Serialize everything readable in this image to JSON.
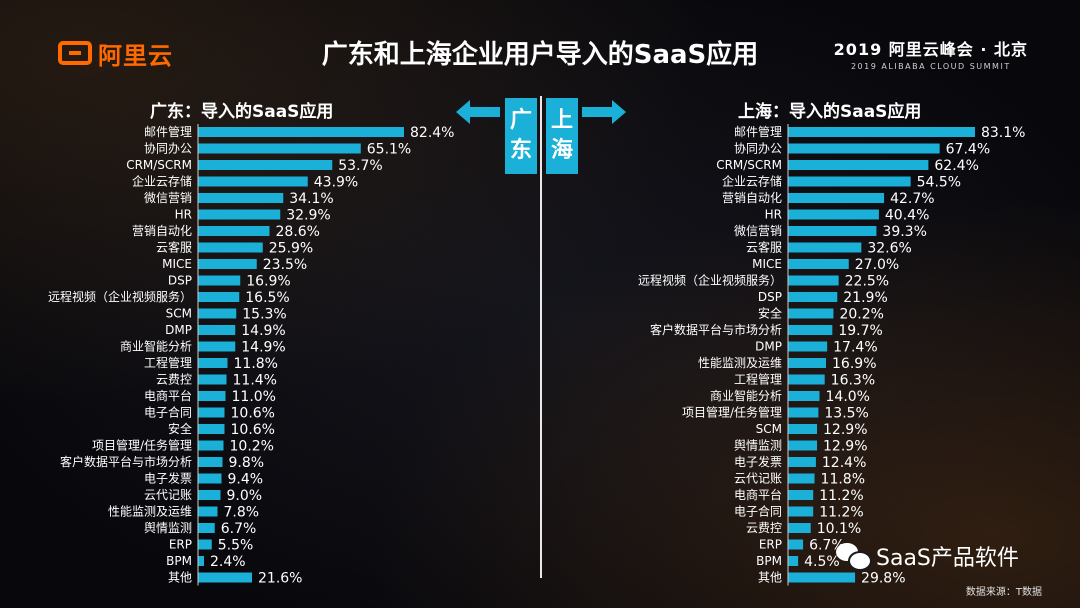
{
  "header": {
    "logo_text": "阿里云",
    "title": "广东和上海企业用户导入的SaaS应用",
    "summit_main": "2019 阿里云峰会 · 北京",
    "summit_sub": "2019 ALIBABA CLOUD SUMMIT"
  },
  "center": {
    "left_city": "广东",
    "right_city": "上海"
  },
  "footer": {
    "source": "数据来源：T数据",
    "watermark": "SaaS产品软件"
  },
  "colors": {
    "bar": "#1ab0d8",
    "text": "#ffffff",
    "logo": "#ff6a00"
  },
  "chart_data": [
    {
      "type": "bar",
      "orientation": "horizontal",
      "title": "广东：导入的SaaS应用",
      "unit": "%",
      "categories": [
        "邮件管理",
        "协同办公",
        "CRM/SCRM",
        "企业云存储",
        "微信营销",
        "HR",
        "营销自动化",
        "云客服",
        "MICE",
        "DSP",
        "远程视频（企业视频服务）",
        "SCM",
        "DMP",
        "商业智能分析",
        "工程管理",
        "云费控",
        "电商平台",
        "电子合同",
        "安全",
        "项目管理/任务管理",
        "客户数据平台与市场分析",
        "电子发票",
        "云代记账",
        "性能监测及运维",
        "舆情监测",
        "ERP",
        "BPM",
        "其他"
      ],
      "values": [
        82.4,
        65.1,
        53.7,
        43.9,
        34.1,
        32.9,
        28.6,
        25.9,
        23.5,
        16.9,
        16.5,
        15.3,
        14.9,
        14.9,
        11.8,
        11.4,
        11.0,
        10.6,
        10.6,
        10.2,
        9.8,
        9.4,
        9.0,
        7.8,
        6.7,
        5.5,
        2.4,
        21.6
      ],
      "labels": [
        "82.4%",
        "65.1%",
        "53.7%",
        "43.9%",
        "34.1%",
        "32.9%",
        "28.6%",
        "25.9%",
        "23.5%",
        "16.9%",
        "16.5%",
        "15.3%",
        "14.9%",
        "14.9%",
        "11.8%",
        "11.4%",
        "11.0%",
        "10.6%",
        "10.6%",
        "10.2%",
        "9.8%",
        "9.4%",
        "9.0%",
        "7.8%",
        "6.7%",
        "5.5%",
        "2.4%",
        "21.6%"
      ],
      "xlim": [
        0,
        100
      ],
      "grid": false
    },
    {
      "type": "bar",
      "orientation": "horizontal",
      "title": "上海：导入的SaaS应用",
      "unit": "%",
      "categories": [
        "邮件管理",
        "协同办公",
        "CRM/SCRM",
        "企业云存储",
        "营销自动化",
        "HR",
        "微信营销",
        "云客服",
        "MICE",
        "远程视频（企业视频服务）",
        "DSP",
        "安全",
        "客户数据平台与市场分析",
        "DMP",
        "性能监测及运维",
        "工程管理",
        "商业智能分析",
        "项目管理/任务管理",
        "SCM",
        "舆情监测",
        "电子发票",
        "云代记账",
        "电商平台",
        "电子合同",
        "云费控",
        "ERP",
        "BPM",
        "其他"
      ],
      "values": [
        83.1,
        67.4,
        62.4,
        54.5,
        42.7,
        40.4,
        39.3,
        32.6,
        27.0,
        22.5,
        21.9,
        20.2,
        19.7,
        17.4,
        16.9,
        16.3,
        14.0,
        13.5,
        12.9,
        12.9,
        12.4,
        11.8,
        11.2,
        11.2,
        10.1,
        6.7,
        4.5,
        29.8
      ],
      "labels": [
        "83.1%",
        "67.4%",
        "62.4%",
        "54.5%",
        "42.7%",
        "40.4%",
        "39.3%",
        "32.6%",
        "27.0%",
        "22.5%",
        "21.9%",
        "20.2%",
        "19.7%",
        "17.4%",
        "16.9%",
        "16.3%",
        "14.0%",
        "13.5%",
        "12.9%",
        "12.9%",
        "12.4%",
        "11.8%",
        "11.2%",
        "11.2%",
        "10.1%",
        "6.7%",
        "4.5%",
        "29.8%"
      ],
      "xlim": [
        0,
        100
      ],
      "grid": false
    }
  ]
}
